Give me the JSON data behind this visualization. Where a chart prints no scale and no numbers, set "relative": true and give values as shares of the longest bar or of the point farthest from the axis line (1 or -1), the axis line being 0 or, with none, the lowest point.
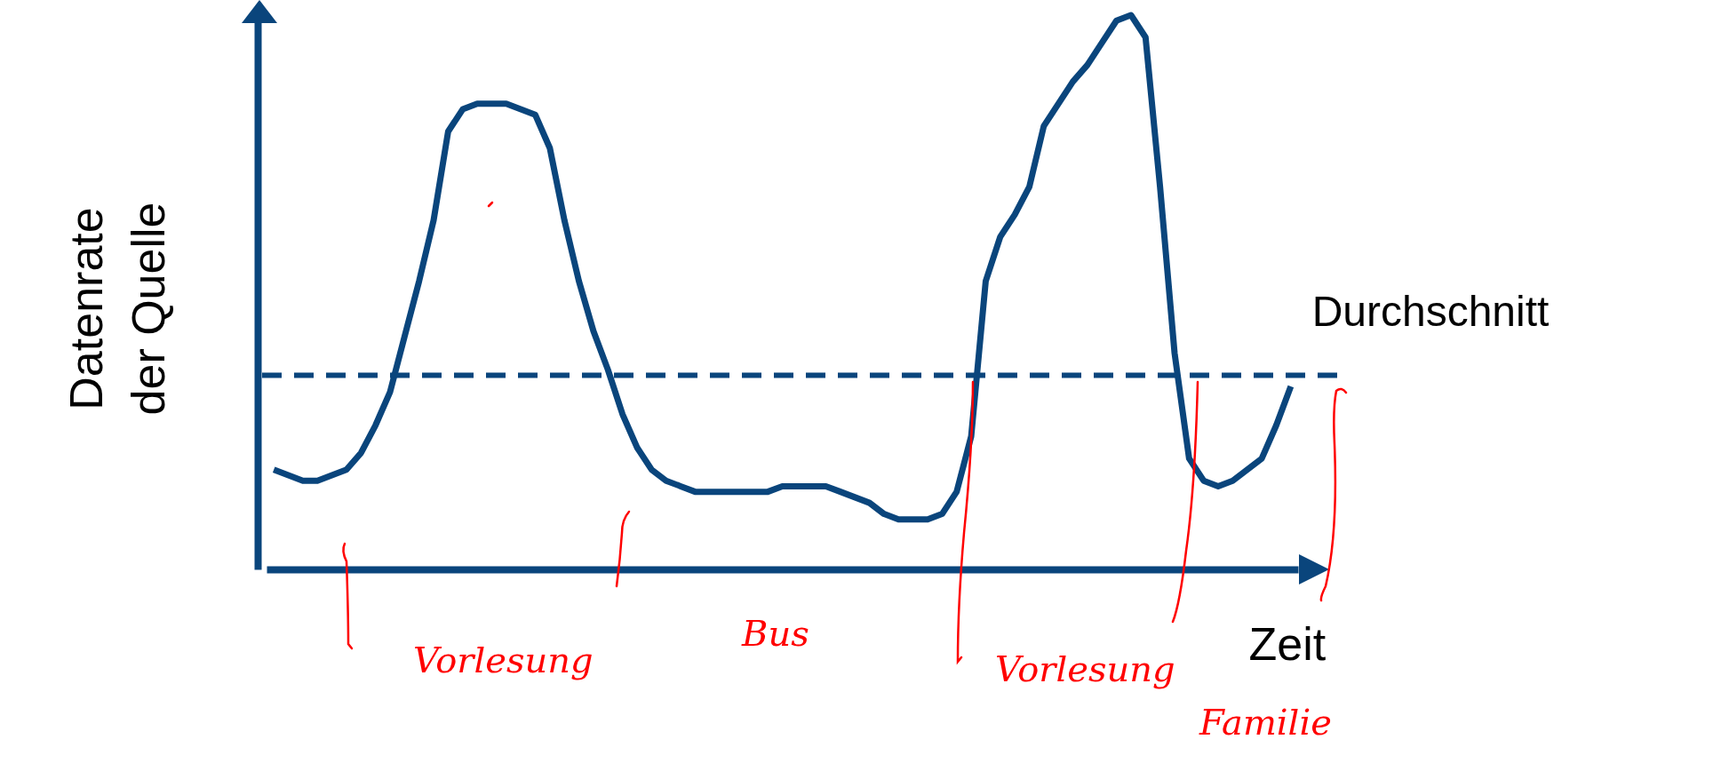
{
  "chart_data": {
    "type": "line",
    "relative": true,
    "xlabel": "Zeit",
    "ylabel": "Datenrate der Quelle",
    "grid": false,
    "categories": [
      null,
      null,
      null,
      null,
      null,
      null,
      null,
      null,
      null,
      null,
      null,
      null,
      null,
      null,
      null,
      null,
      null,
      null,
      null,
      null,
      null,
      null,
      null,
      null,
      null,
      null,
      null,
      null,
      null,
      null,
      null,
      null,
      null,
      null,
      null,
      null,
      null,
      null,
      null,
      null,
      null,
      null,
      null,
      null,
      null,
      null,
      null,
      null,
      null,
      null,
      null,
      null,
      null,
      null,
      null,
      null,
      null,
      null,
      null,
      null,
      null,
      null,
      null,
      null,
      null,
      null,
      null,
      null,
      null,
      null,
      null
    ],
    "series": [
      {
        "color": "#0a457c",
        "line_style": "solid",
        "values": [
          0.18,
          0.17,
          0.16,
          0.16,
          0.17,
          0.18,
          0.21,
          0.26,
          0.32,
          0.42,
          0.52,
          0.63,
          0.79,
          0.83,
          0.84,
          0.84,
          0.84,
          0.83,
          0.82,
          0.76,
          0.63,
          0.52,
          0.43,
          0.36,
          0.28,
          0.22,
          0.18,
          0.16,
          0.15,
          0.14,
          0.14,
          0.14,
          0.14,
          0.14,
          0.14,
          0.15,
          0.15,
          0.15,
          0.15,
          0.14,
          0.13,
          0.12,
          0.1,
          0.09,
          0.09,
          0.09,
          0.1,
          0.14,
          0.24,
          0.52,
          0.6,
          0.64,
          0.69,
          0.8,
          0.84,
          0.88,
          0.91,
          0.95,
          0.99,
          1.0,
          0.96,
          0.69,
          0.39,
          0.2,
          0.16,
          0.15,
          0.16,
          0.18,
          0.2,
          0.26,
          0.33
        ]
      }
    ],
    "ref_lines": [
      {
        "axis": "y",
        "value": 0.35,
        "label": "Durchschnitt",
        "color": "#0a457c",
        "line_style": "dashed"
      }
    ],
    "annotations": [
      "Vorlesung",
      "Bus",
      "Vorlesung",
      "Familie"
    ]
  }
}
